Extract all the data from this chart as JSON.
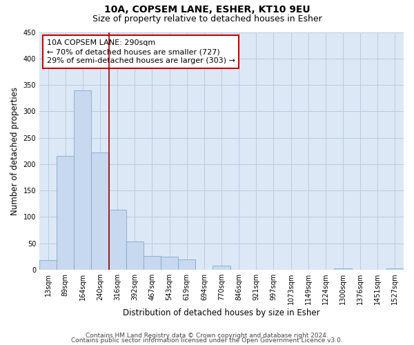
{
  "title": "10A, COPSEM LANE, ESHER, KT10 9EU",
  "subtitle": "Size of property relative to detached houses in Esher",
  "xlabel": "Distribution of detached houses by size in Esher",
  "ylabel": "Number of detached properties",
  "bar_labels": [
    "13sqm",
    "89sqm",
    "164sqm",
    "240sqm",
    "316sqm",
    "392sqm",
    "467sqm",
    "543sqm",
    "619sqm",
    "694sqm",
    "770sqm",
    "846sqm",
    "921sqm",
    "997sqm",
    "1073sqm",
    "1149sqm",
    "1224sqm",
    "1300sqm",
    "1376sqm",
    "1451sqm",
    "1527sqm"
  ],
  "bar_values": [
    18,
    215,
    340,
    222,
    114,
    54,
    26,
    25,
    20,
    0,
    8,
    0,
    0,
    0,
    0,
    0,
    0,
    3,
    0,
    0,
    3
  ],
  "bar_color": "#c8d8ee",
  "bar_edge_color": "#7baad0",
  "vline_color": "#990000",
  "annotation_text": "10A COPSEM LANE: 290sqm\n← 70% of detached houses are smaller (727)\n29% of semi-detached houses are larger (303) →",
  "ylim": [
    0,
    450
  ],
  "yticks": [
    0,
    50,
    100,
    150,
    200,
    250,
    300,
    350,
    400,
    450
  ],
  "footer_line1": "Contains HM Land Registry data © Crown copyright and database right 2024.",
  "footer_line2": "Contains public sector information licensed under the Open Government Licence v3.0.",
  "bg_color": "#ffffff",
  "plot_bg_color": "#dce8f5",
  "grid_color": "#b8cce0",
  "title_fontsize": 10,
  "subtitle_fontsize": 9,
  "axis_label_fontsize": 8.5,
  "tick_fontsize": 7,
  "footer_fontsize": 6.5,
  "annotation_fontsize": 8,
  "vline_x_index": 3.5
}
